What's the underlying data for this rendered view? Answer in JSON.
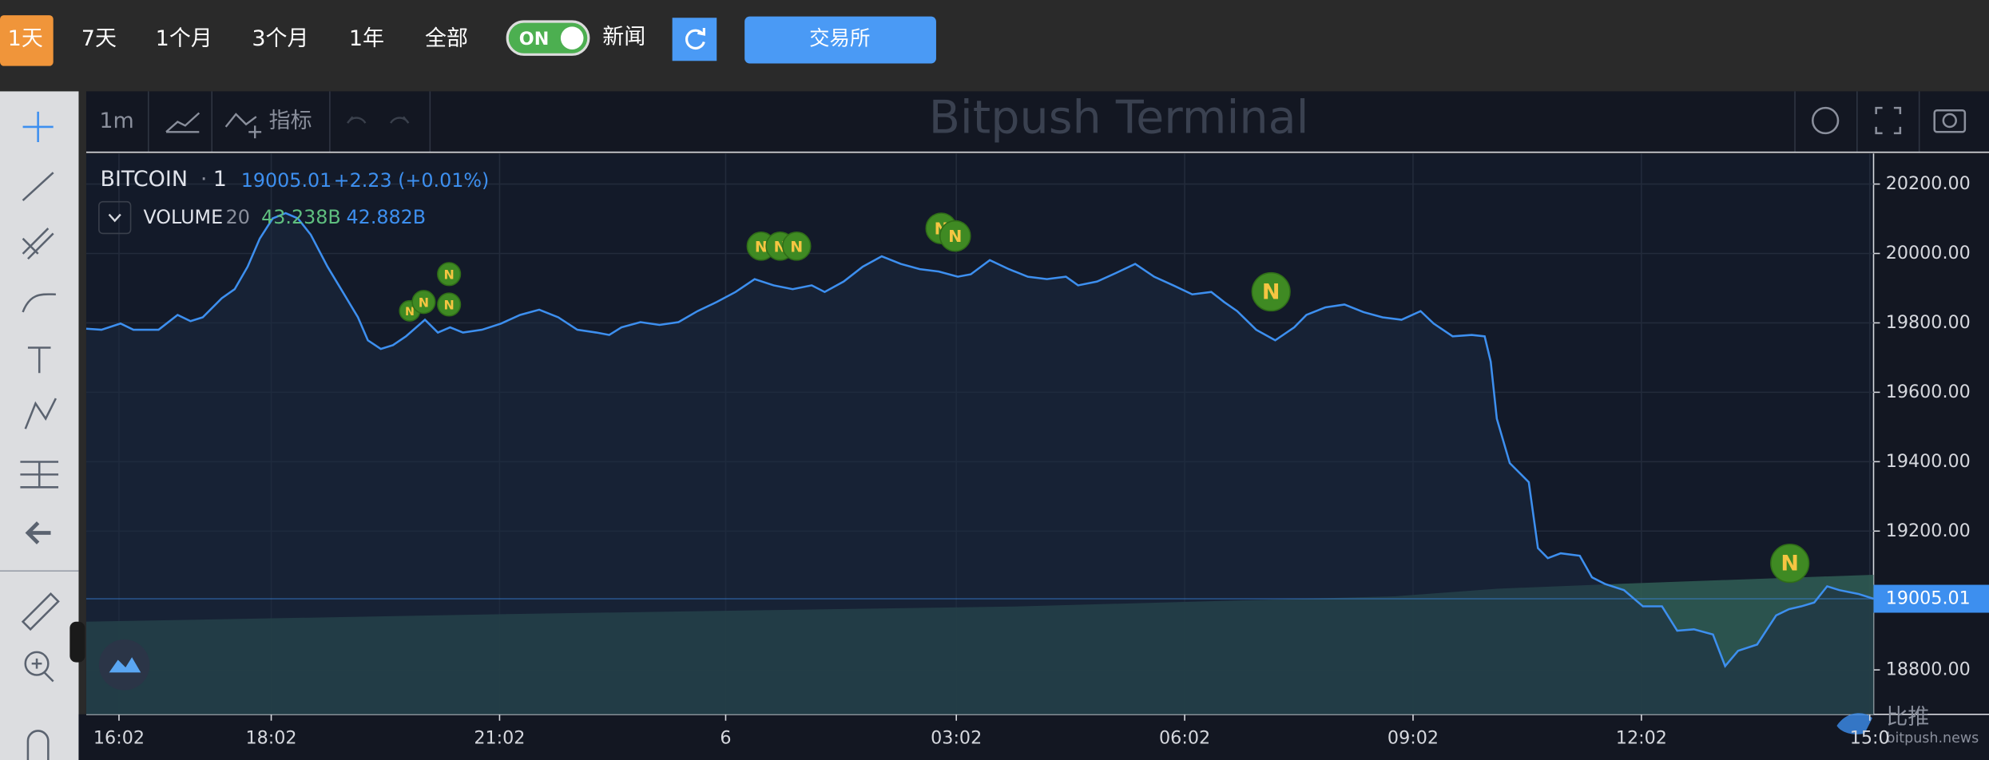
{
  "toolbar": {
    "ranges": [
      "1天",
      "7天",
      "1个月",
      "3个月",
      "1年",
      "全部"
    ],
    "toggle": "ON",
    "news": "新闻",
    "exchange": "交易所"
  },
  "chart_toolbar": {
    "interval": "1m",
    "indicators": "指标",
    "title": "Bitpush Terminal"
  },
  "legend": {
    "symbol": "BITCOIN",
    "interval": "1",
    "change": "+2.23 (+0.01%)",
    "volume": "VOLUME",
    "volume_length": "20",
    "volume_values": [
      "43.238B",
      "42.882B"
    ]
  },
  "chart_data": {
    "type": "line",
    "color": "#3d8fef",
    "grid": true,
    "x": [
      15.6,
      15.8,
      16.05,
      16.22,
      16.55,
      16.8,
      16.97,
      17.13,
      17.38,
      17.55,
      17.72,
      17.88,
      18.05,
      18.22,
      18.38,
      18.55,
      18.77,
      18.97,
      19.17,
      19.3,
      19.47,
      19.63,
      19.8,
      20.05,
      20.22,
      20.38,
      20.55,
      20.8,
      21.05,
      21.3,
      21.55,
      21.8,
      22.05,
      22.3,
      22.47,
      22.63,
      22.88,
      23.13,
      23.38,
      23.63,
      23.88,
      24.13,
      24.38,
      24.63,
      24.88,
      25.13,
      25.3,
      25.55,
      25.8,
      26.05,
      26.3,
      26.55,
      26.8,
      27.05,
      27.22,
      27.47,
      27.72,
      27.97,
      28.22,
      28.47,
      28.63,
      28.88,
      29.13,
      29.38,
      29.63,
      29.88,
      30.13,
      30.38,
      30.55,
      30.72,
      30.97,
      31.22,
      31.47,
      31.63,
      31.88,
      32.13,
      32.38,
      32.63,
      32.88,
      33.13,
      33.3,
      33.55,
      33.8,
      33.97,
      34.05,
      34.13,
      34.3,
      34.55,
      34.67,
      34.8,
      34.97,
      35.22,
      35.38,
      35.55,
      35.8,
      36.05,
      36.3,
      36.5,
      36.72,
      36.97,
      37.13,
      37.3,
      37.55,
      37.8,
      37.97,
      38.13,
      38.3,
      38.47,
      38.63,
      38.88,
      39.08
    ],
    "values": [
      19783,
      19780,
      19798,
      19780,
      19780,
      19823,
      19805,
      19816,
      19871,
      19897,
      19962,
      20043,
      20101,
      20116,
      20101,
      20054,
      19962,
      19889,
      19816,
      19750,
      19725,
      19736,
      19761,
      19809,
      19772,
      19787,
      19772,
      19780,
      19798,
      19823,
      19838,
      19816,
      19780,
      19772,
      19765,
      19787,
      19802,
      19794,
      19802,
      19834,
      19860,
      19889,
      19926,
      19908,
      19897,
      19908,
      19889,
      19919,
      19962,
      19992,
      19970,
      19955,
      19948,
      19933,
      19940,
      19981,
      19955,
      19933,
      19926,
      19933,
      19908,
      19919,
      19944,
      19970,
      19933,
      19908,
      19882,
      19889,
      19860,
      19834,
      19780,
      19750,
      19787,
      19823,
      19845,
      19853,
      19831,
      19816,
      19809,
      19834,
      19798,
      19761,
      19765,
      19761,
      19688,
      19524,
      19396,
      19341,
      19151,
      19122,
      19136,
      19129,
      19067,
      19048,
      19030,
      18983,
      18983,
      18913,
      18917,
      18902,
      18811,
      18855,
      18873,
      18957,
      18975,
      18983,
      18994,
      19041,
      19030,
      19019,
      19005
    ],
    "xlim": [
      15.6,
      39.08
    ],
    "ylim": [
      18672,
      20288
    ],
    "xticks": [
      {
        "value": 16.03,
        "label": "16:02"
      },
      {
        "value": 18.03,
        "label": "18:02"
      },
      {
        "value": 21.03,
        "label": "21:02"
      },
      {
        "value": 24,
        "label": "6"
      },
      {
        "value": 27.03,
        "label": "03:02"
      },
      {
        "value": 30.03,
        "label": "06:02"
      },
      {
        "value": 33.03,
        "label": "09:02"
      },
      {
        "value": 36.03,
        "label": "12:02"
      },
      {
        "value": 39.03,
        "label": "15:0"
      }
    ],
    "yticks": [
      {
        "value": 18800,
        "label": "18800.00"
      },
      {
        "value": 19200,
        "label": "19200.00"
      },
      {
        "value": 19400,
        "label": "19400.00"
      },
      {
        "value": 19600,
        "label": "19600.00"
      },
      {
        "value": 19800,
        "label": "19800.00"
      },
      {
        "value": 20000,
        "label": "20000.00"
      },
      {
        "value": 20200,
        "label": "20200.00"
      }
    ],
    "last_price": {
      "value": 19005.01,
      "label": "19005.01"
    }
  },
  "news_marker": "N",
  "watermark": {
    "brand": "比推",
    "site": "bitpush.news"
  }
}
